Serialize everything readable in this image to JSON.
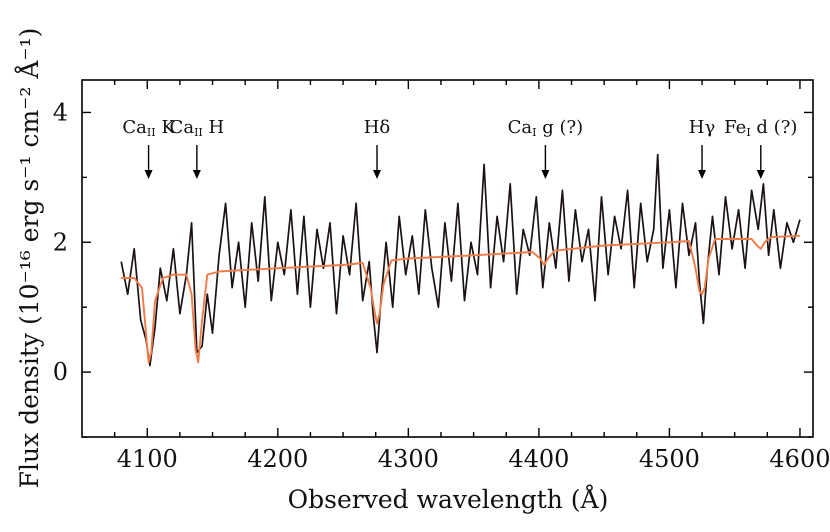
{
  "chart_data": {
    "type": "line",
    "xlabel": "Observed wavelength (Å)",
    "ylabel": "Flux density (10⁻¹⁶ erg s⁻¹ cm⁻² Å⁻¹)",
    "xlim": [
      4050,
      4610
    ],
    "ylim": [
      -1,
      4.5
    ],
    "xticks": [
      4100,
      4200,
      4300,
      4400,
      4500,
      4600
    ],
    "yticks": [
      0,
      2,
      4
    ],
    "grid": false,
    "series": [
      {
        "color": "#1b1212",
        "x": [
          4080,
          4085,
          4090,
          4095,
          4099,
          4102,
          4106,
          4110,
          4115,
          4120,
          4125,
          4130,
          4134,
          4138,
          4142,
          4146,
          4150,
          4155,
          4160,
          4165,
          4170,
          4175,
          4180,
          4185,
          4190,
          4195,
          4200,
          4205,
          4210,
          4215,
          4220,
          4225,
          4230,
          4235,
          4240,
          4245,
          4250,
          4255,
          4260,
          4265,
          4270,
          4273,
          4276,
          4279,
          4283,
          4288,
          4293,
          4298,
          4303,
          4308,
          4313,
          4318,
          4323,
          4328,
          4333,
          4338,
          4343,
          4348,
          4353,
          4358,
          4363,
          4368,
          4373,
          4378,
          4383,
          4388,
          4393,
          4398,
          4403,
          4408,
          4413,
          4418,
          4423,
          4428,
          4433,
          4438,
          4443,
          4448,
          4453,
          4458,
          4463,
          4468,
          4473,
          4478,
          4483,
          4488,
          4491,
          4495,
          4500,
          4505,
          4510,
          4515,
          4520,
          4523,
          4526,
          4529,
          4533,
          4538,
          4543,
          4548,
          4553,
          4558,
          4563,
          4568,
          4572,
          4576,
          4580,
          4585,
          4590,
          4595,
          4600
        ],
        "y": [
          1.7,
          1.2,
          1.9,
          0.8,
          0.5,
          0.1,
          0.7,
          1.6,
          1.1,
          1.9,
          0.9,
          1.5,
          2.3,
          0.3,
          0.4,
          1.2,
          0.6,
          1.8,
          2.6,
          1.3,
          2.0,
          1.0,
          2.3,
          1.4,
          2.7,
          1.1,
          2.0,
          1.5,
          2.5,
          1.2,
          2.4,
          1.0,
          2.2,
          1.6,
          2.3,
          0.9,
          2.1,
          1.5,
          2.6,
          1.1,
          1.7,
          0.9,
          0.3,
          1.1,
          2.0,
          1.0,
          2.4,
          1.5,
          2.1,
          1.2,
          2.5,
          1.6,
          1.0,
          2.3,
          1.4,
          2.6,
          1.1,
          2.0,
          1.5,
          3.2,
          1.3,
          2.4,
          1.7,
          2.9,
          1.2,
          2.2,
          1.8,
          2.7,
          1.3,
          2.3,
          1.6,
          2.8,
          1.4,
          2.5,
          1.7,
          2.2,
          1.1,
          2.7,
          1.5,
          2.4,
          1.9,
          2.8,
          1.3,
          2.6,
          1.7,
          2.2,
          3.35,
          1.6,
          2.5,
          1.3,
          2.6,
          1.8,
          2.3,
          1.4,
          0.75,
          1.6,
          2.4,
          1.5,
          2.7,
          1.9,
          2.5,
          1.6,
          2.8,
          2.2,
          2.9,
          1.8,
          2.5,
          1.6,
          2.3,
          2.0,
          2.35
        ]
      },
      {
        "color": "#f07b47",
        "x": [
          4080,
          4090,
          4096,
          4099,
          4101,
          4103,
          4106,
          4112,
          4120,
          4130,
          4134,
          4137,
          4139,
          4142,
          4146,
          4155,
          4200,
          4250,
          4265,
          4271,
          4274,
          4276,
          4278,
          4281,
          4287,
          4300,
          4350,
          4395,
          4401,
          4404,
          4407,
          4412,
          4450,
          4500,
          4515,
          4520,
          4523,
          4525,
          4527,
          4530,
          4535,
          4550,
          4563,
          4567,
          4570,
          4573,
          4578,
          4600
        ],
        "y": [
          1.45,
          1.45,
          1.3,
          0.6,
          0.15,
          0.3,
          1.1,
          1.45,
          1.5,
          1.5,
          1.2,
          0.35,
          0.15,
          0.8,
          1.5,
          1.55,
          1.6,
          1.65,
          1.68,
          1.3,
          0.95,
          0.75,
          0.9,
          1.35,
          1.72,
          1.75,
          1.8,
          1.85,
          1.75,
          1.65,
          1.75,
          1.87,
          1.95,
          2.0,
          2.02,
          1.6,
          1.25,
          1.2,
          1.3,
          1.75,
          2.05,
          2.05,
          2.05,
          1.95,
          1.9,
          2.0,
          2.08,
          2.1
        ]
      }
    ],
    "annotations": [
      {
        "x": 4101,
        "prefix": "Ca",
        "sub": "II",
        "suffix": " K"
      },
      {
        "x": 4138,
        "prefix": "Ca",
        "sub": "II",
        "suffix": " H"
      },
      {
        "x": 4276,
        "prefix": "Hδ",
        "sub": "",
        "suffix": ""
      },
      {
        "x": 4405,
        "prefix": "Ca",
        "sub": "I",
        "suffix": " g (?)"
      },
      {
        "x": 4525,
        "prefix": "Hγ",
        "sub": "",
        "suffix": ""
      },
      {
        "x": 4570,
        "prefix": "Fe",
        "sub": "I",
        "suffix": " d (?)"
      }
    ]
  }
}
